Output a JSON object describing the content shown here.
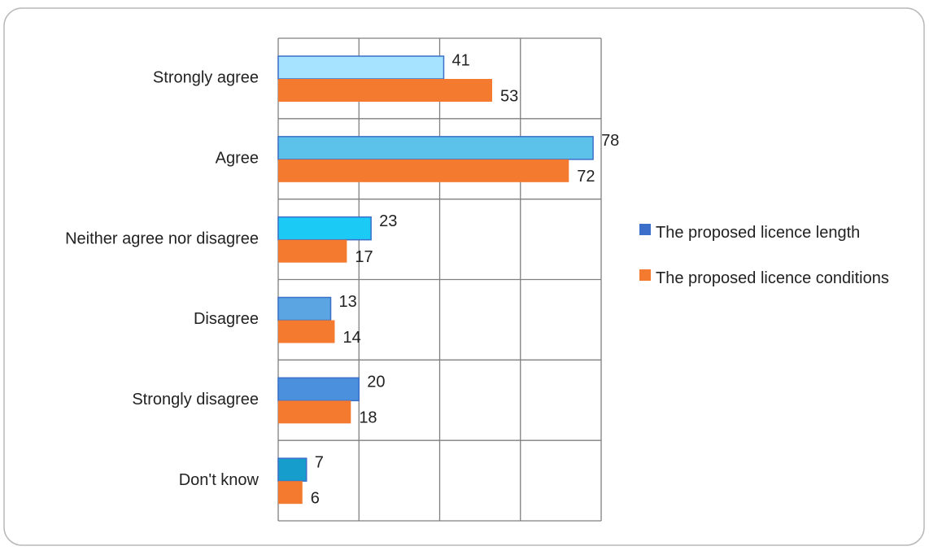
{
  "chart_data": {
    "type": "bar",
    "orientation": "horizontal",
    "categories": [
      "Strongly agree",
      "Agree",
      "Neither agree nor disagree",
      "Disagree",
      "Strongly disagree",
      "Don't know"
    ],
    "series": [
      {
        "name": "The proposed licence length",
        "color": "#3b6fc9",
        "colors": [
          "#a6e3ff",
          "#5cc2ea",
          "#1ccaf6",
          "#5ba6e2",
          "#4a90dc",
          "#169dcb"
        ],
        "values": [
          41,
          78,
          23,
          13,
          20,
          7
        ]
      },
      {
        "name": "The proposed licence conditions",
        "color": "#f47a30",
        "values": [
          53,
          72,
          17,
          14,
          18,
          6
        ]
      }
    ],
    "xlim": [
      0,
      80
    ],
    "xticks": [
      0,
      20,
      40,
      60,
      80
    ],
    "grid": true,
    "legend": "right"
  }
}
